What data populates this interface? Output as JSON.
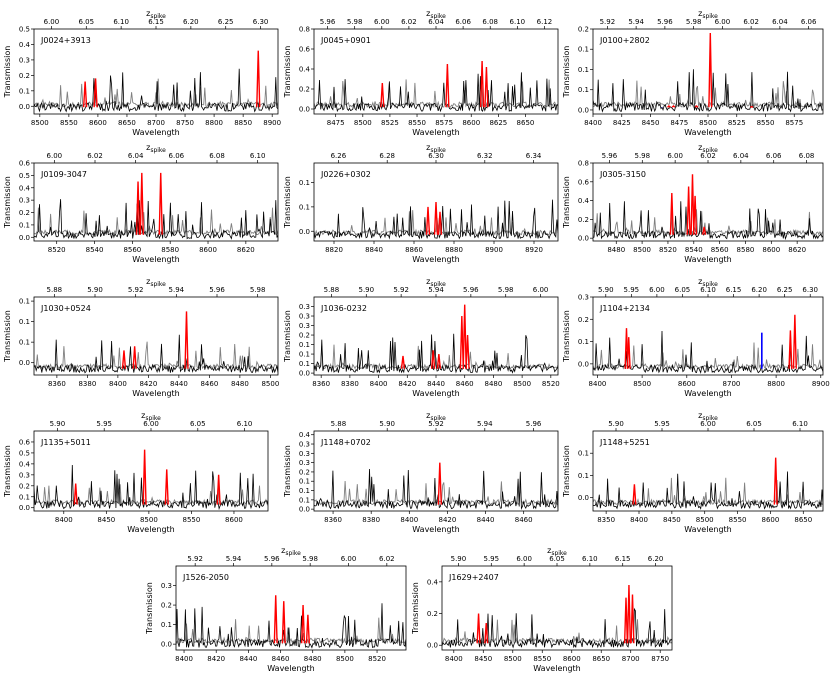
{
  "colors": {
    "primary": "#000000",
    "secondary": "#808080",
    "spike": "#ff0000",
    "other": "#0000ff"
  },
  "chart_data": [
    {
      "type": "line",
      "name": "J0024+3913",
      "xlabel": "Wavelength",
      "ylabel": "Transmission",
      "top_label": "z_spike",
      "xlim": [
        8490,
        8910
      ],
      "ylim": [
        -0.05,
        0.5
      ],
      "xticks": [
        8500,
        8550,
        8600,
        8650,
        8700,
        8750,
        8800,
        8850,
        8900
      ],
      "yticks": [
        0.0,
        0.1,
        0.2,
        0.3,
        0.4,
        0.5
      ],
      "zticks": [
        6.0,
        6.05,
        6.1,
        6.15,
        6.2,
        6.25,
        6.3
      ],
      "spikes": [
        {
          "x": 8578,
          "h": 0.16
        },
        {
          "x": 8596,
          "h": 0.18
        },
        {
          "x": 8876,
          "h": 0.36
        }
      ],
      "blue": []
    },
    {
      "type": "line",
      "name": "J0045+0901",
      "xlabel": "Wavelength",
      "ylabel": "Transmission",
      "top_label": "z_spike",
      "xlim": [
        8455,
        8680
      ],
      "ylim": [
        -0.05,
        0.8
      ],
      "xticks": [
        8475,
        8500,
        8525,
        8550,
        8575,
        8600,
        8625,
        8650
      ],
      "yticks": [
        0.0,
        0.2,
        0.4,
        0.6,
        0.8
      ],
      "zticks": [
        5.96,
        5.98,
        6.0,
        6.02,
        6.04,
        6.06,
        6.08,
        6.1,
        6.12
      ],
      "spikes": [
        {
          "x": 8518,
          "h": 0.26
        },
        {
          "x": 8578,
          "h": 0.45
        },
        {
          "x": 8610,
          "h": 0.48
        },
        {
          "x": 8614,
          "h": 0.42
        }
      ],
      "blue": []
    },
    {
      "type": "line",
      "name": "J0100+2802",
      "xlabel": "Wavelength",
      "ylabel": "Transmission",
      "top_label": "z_spike",
      "xlim": [
        8400,
        8600
      ],
      "ylim": [
        -0.01,
        0.2
      ],
      "xticks": [
        8400,
        8425,
        8450,
        8475,
        8500,
        8525,
        8550,
        8575
      ],
      "yticks": [
        0.0,
        0.05,
        0.1,
        0.15,
        0.2
      ],
      "zticks": [
        5.92,
        5.94,
        5.96,
        5.98,
        6.0,
        6.02,
        6.04,
        6.06
      ],
      "spikes": [
        {
          "x": 8466,
          "h": 0.01
        },
        {
          "x": 8470,
          "h": 0.01
        },
        {
          "x": 8490,
          "h": 0.01
        },
        {
          "x": 8502,
          "h": 0.19
        },
        {
          "x": 8538,
          "h": 0.008
        }
      ],
      "blue": [
        {
          "x": 8460,
          "h": 0.006
        }
      ]
    },
    {
      "type": "line",
      "name": "J0109-3047",
      "xlabel": "Wavelength",
      "ylabel": "Transmission",
      "top_label": "z_spike",
      "xlim": [
        8508,
        8637
      ],
      "ylim": [
        -0.03,
        0.6
      ],
      "xticks": [
        8520,
        8540,
        8560,
        8580,
        8600,
        8620
      ],
      "yticks": [
        0.0,
        0.1,
        0.2,
        0.3,
        0.4,
        0.5,
        0.6
      ],
      "zticks": [
        6.0,
        6.02,
        6.04,
        6.06,
        6.08,
        6.1
      ],
      "spikes": [
        {
          "x": 8563,
          "h": 0.45
        },
        {
          "x": 8565,
          "h": 0.52
        },
        {
          "x": 8575,
          "h": 0.52
        }
      ],
      "blue": []
    },
    {
      "type": "line",
      "name": "J0226+0302",
      "xlabel": "Wavelength",
      "ylabel": "Transmission",
      "top_label": "z_spike",
      "xlim": [
        8810,
        8932
      ],
      "ylim": [
        -0.02,
        0.14
      ],
      "xticks": [
        8820,
        8840,
        8860,
        8880,
        8900,
        8920
      ],
      "yticks": [
        0.0,
        0.05,
        0.1
      ],
      "zticks": [
        6.26,
        6.28,
        6.3,
        6.32,
        6.34
      ],
      "spikes": [
        {
          "x": 8867,
          "h": 0.05
        },
        {
          "x": 8871,
          "h": 0.06
        },
        {
          "x": 8873,
          "h": 0.04
        }
      ],
      "blue": []
    },
    {
      "type": "line",
      "name": "J0305-3150",
      "xlabel": "Wavelength",
      "ylabel": "Transmission",
      "top_label": "z_spike",
      "xlim": [
        8462,
        8640
      ],
      "ylim": [
        -0.03,
        0.8
      ],
      "xticks": [
        8480,
        8500,
        8520,
        8540,
        8560,
        8580,
        8600,
        8620
      ],
      "yticks": [
        0.0,
        0.2,
        0.4,
        0.6,
        0.8
      ],
      "zticks": [
        5.96,
        5.98,
        6.0,
        6.02,
        6.04,
        6.06,
        6.08
      ],
      "spikes": [
        {
          "x": 8523,
          "h": 0.48
        },
        {
          "x": 8536,
          "h": 0.55
        },
        {
          "x": 8539,
          "h": 0.68
        },
        {
          "x": 8541,
          "h": 0.45
        },
        {
          "x": 8548,
          "h": 0.12
        }
      ],
      "blue": []
    },
    {
      "type": "line",
      "name": "J1030+0524",
      "xlabel": "Wavelength",
      "ylabel": "Transmission",
      "top_label": "z_spike",
      "xlim": [
        8345,
        8505
      ],
      "ylim": [
        -0.03,
        0.16
      ],
      "xticks": [
        8360,
        8380,
        8400,
        8420,
        8440,
        8460,
        8480,
        8500
      ],
      "yticks": [
        0.0,
        0.05,
        0.1,
        0.15
      ],
      "zticks": [
        5.88,
        5.9,
        5.92,
        5.94,
        5.96,
        5.98
      ],
      "spikes": [
        {
          "x": 8404,
          "h": 0.03
        },
        {
          "x": 8411,
          "h": 0.04
        },
        {
          "x": 8445,
          "h": 0.125
        }
      ],
      "blue": []
    },
    {
      "type": "line",
      "name": "J1036-0232",
      "xlabel": "Wavelength",
      "ylabel": "Transmission",
      "top_label": "z_spike",
      "xlim": [
        8355,
        8525
      ],
      "ylim": [
        -0.01,
        0.4
      ],
      "xticks": [
        8360,
        8380,
        8400,
        8420,
        8440,
        8460,
        8480,
        8500,
        8520
      ],
      "yticks": [
        0.0,
        0.05,
        0.1,
        0.15,
        0.2,
        0.25,
        0.3,
        0.35
      ],
      "zticks": [
        5.88,
        5.9,
        5.92,
        5.94,
        5.96,
        5.98,
        6.0
      ],
      "spikes": [
        {
          "x": 8417,
          "h": 0.09
        },
        {
          "x": 8438,
          "h": 0.12
        },
        {
          "x": 8442,
          "h": 0.1
        },
        {
          "x": 8458,
          "h": 0.3
        },
        {
          "x": 8460,
          "h": 0.36
        },
        {
          "x": 8462,
          "h": 0.2
        }
      ],
      "blue": []
    },
    {
      "type": "line",
      "name": "J1104+2134",
      "xlabel": "Wavelength",
      "ylabel": "Transmission",
      "top_label": "z_spike",
      "xlim": [
        8390,
        8905
      ],
      "ylim": [
        -0.05,
        0.3
      ],
      "xticks": [
        8400,
        8500,
        8600,
        8700,
        8800,
        8900
      ],
      "yticks": [
        0.0,
        0.1,
        0.2,
        0.3
      ],
      "zticks": [
        5.9,
        5.95,
        6.0,
        6.05,
        6.1,
        6.15,
        6.2,
        6.25,
        6.3
      ],
      "spikes": [
        {
          "x": 8465,
          "h": 0.16
        },
        {
          "x": 8470,
          "h": 0.12
        },
        {
          "x": 8832,
          "h": 0.15
        },
        {
          "x": 8842,
          "h": 0.22
        }
      ],
      "blue": [
        {
          "x": 8768,
          "h": 0.14
        }
      ]
    },
    {
      "type": "line",
      "name": "J1135+5011",
      "xlabel": "Wavelength",
      "ylabel": "Transmission",
      "top_label": "z_spike",
      "xlim": [
        8365,
        8640
      ],
      "ylim": [
        -0.03,
        0.7
      ],
      "xticks": [
        8400,
        8450,
        8500,
        8550,
        8600
      ],
      "yticks": [
        0.0,
        0.1,
        0.2,
        0.3,
        0.4,
        0.5,
        0.6
      ],
      "zticks": [
        5.9,
        5.95,
        6.0,
        6.05,
        6.1
      ],
      "spikes": [
        {
          "x": 8414,
          "h": 0.22
        },
        {
          "x": 8495,
          "h": 0.53
        },
        {
          "x": 8521,
          "h": 0.35
        },
        {
          "x": 8582,
          "h": 0.3
        }
      ],
      "blue": []
    },
    {
      "type": "line",
      "name": "J1148+0702",
      "xlabel": "Wavelength",
      "ylabel": "Transmission",
      "top_label": "z_spike",
      "xlim": [
        8350,
        8478
      ],
      "ylim": [
        -0.01,
        0.42
      ],
      "xticks": [
        8360,
        8380,
        8400,
        8420,
        8440,
        8460
      ],
      "yticks": [
        0.0,
        0.05,
        0.1,
        0.15,
        0.2,
        0.25,
        0.3,
        0.35,
        0.4
      ],
      "zticks": [
        5.88,
        5.9,
        5.92,
        5.94,
        5.96
      ],
      "spikes": [
        {
          "x": 8416,
          "h": 0.25
        }
      ],
      "blue": []
    },
    {
      "type": "line",
      "name": "J1148+5251",
      "xlabel": "Wavelength",
      "ylabel": "Transmission",
      "top_label": "z_spike",
      "xlim": [
        8330,
        8680
      ],
      "ylim": [
        -0.03,
        0.15
      ],
      "xticks": [
        8350,
        8400,
        8450,
        8500,
        8550,
        8600,
        8650
      ],
      "yticks": [
        0.0,
        0.05,
        0.1
      ],
      "zticks": [
        5.9,
        5.95,
        6.0,
        6.05,
        6.1
      ],
      "spikes": [
        {
          "x": 8393,
          "h": 0.03
        },
        {
          "x": 8608,
          "h": 0.09
        }
      ],
      "blue": []
    },
    {
      "type": "line",
      "name": "J1526-2050",
      "xlabel": "Wavelength",
      "ylabel": "Transmission",
      "top_label": "z_spike",
      "xlim": [
        8395,
        8538
      ],
      "ylim": [
        -0.03,
        0.4
      ],
      "xticks": [
        8400,
        8420,
        8440,
        8460,
        8480,
        8500,
        8520
      ],
      "yticks": [
        0.0,
        0.1,
        0.2,
        0.3
      ],
      "zticks": [
        5.92,
        5.94,
        5.96,
        5.98,
        6.0,
        6.02
      ],
      "spikes": [
        {
          "x": 8457,
          "h": 0.25
        },
        {
          "x": 8462,
          "h": 0.22
        },
        {
          "x": 8474,
          "h": 0.2
        },
        {
          "x": 8477,
          "h": 0.15
        }
      ],
      "blue": []
    },
    {
      "type": "line",
      "name": "J1629+2407",
      "xlabel": "Wavelength",
      "ylabel": "Transmission",
      "top_label": "z_spike",
      "xlim": [
        8380,
        8770
      ],
      "ylim": [
        -0.03,
        0.5
      ],
      "xticks": [
        8400,
        8450,
        8500,
        8550,
        8600,
        8650,
        8700,
        8750
      ],
      "yticks": [
        0.0,
        0.2,
        0.4
      ],
      "zticks": [
        5.9,
        5.95,
        6.0,
        6.05,
        6.1,
        6.15,
        6.2
      ],
      "spikes": [
        {
          "x": 8442,
          "h": 0.2
        },
        {
          "x": 8455,
          "h": 0.14
        },
        {
          "x": 8692,
          "h": 0.3
        },
        {
          "x": 8697,
          "h": 0.38
        },
        {
          "x": 8703,
          "h": 0.32
        }
      ],
      "blue": []
    }
  ]
}
